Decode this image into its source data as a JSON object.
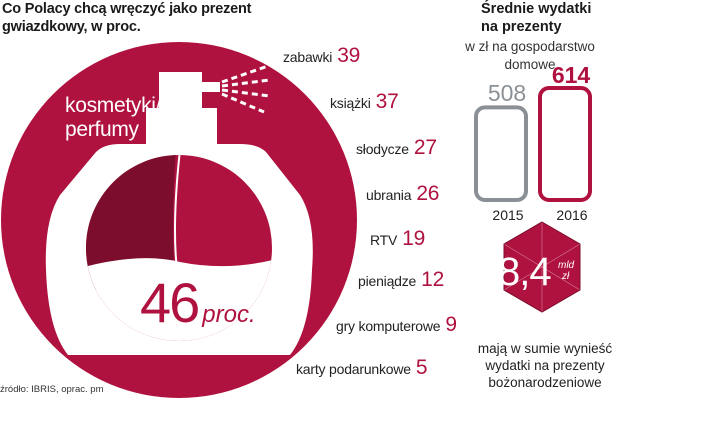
{
  "left_chart": {
    "title": "Co Polacy chcą wręczyć jako prezent gwiazdkowy, w proc.",
    "title_line1": "Co Polacy chcą wręczyć jako prezent",
    "title_line2": "gwiazdkowy, w proc.",
    "main_category": {
      "label_line1": "kosmetyki/",
      "label_line2": "perfumy",
      "value": "46",
      "unit": "proc."
    },
    "source": "źródło: IBRIS, oprac. pm",
    "color_accent": "#b0123f",
    "color_dark": "#7c0d2c"
  },
  "chart_data": [
    {
      "type": "bar",
      "title": "Co Polacy chcą wręczyć jako prezent gwiazdkowy, w proc.",
      "categories": [
        "kosmetyki/perfumy",
        "zabawki",
        "książki",
        "słodycze",
        "ubrania",
        "RTV",
        "pieniądze",
        "gry komputerowe",
        "karty podarunkowe"
      ],
      "values": [
        46,
        39,
        37,
        27,
        26,
        19,
        12,
        9,
        5
      ],
      "items": [
        {
          "label": "zabawki",
          "value": "39"
        },
        {
          "label": "książki",
          "value": "37"
        },
        {
          "label": "słodycze",
          "value": "27"
        },
        {
          "label": "ubrania",
          "value": "26"
        },
        {
          "label": "RTV",
          "value": "19"
        },
        {
          "label": "pieniądze",
          "value": "12"
        },
        {
          "label": "gry komputerowe",
          "value": "9"
        },
        {
          "label": "karty podarunkowe",
          "value": "5"
        }
      ]
    },
    {
      "type": "bar",
      "title": "Średnie wydatki na prezenty",
      "subtitle": "w zł na gospodarstwo domowe",
      "categories": [
        "2015",
        "2016"
      ],
      "values": [
        508,
        614
      ],
      "ylim": [
        0,
        614
      ]
    }
  ],
  "right_chart": {
    "title_line1": "Średnie wydatki",
    "title_line2": "na prezenty",
    "sub_line1": "w zł na gospodarstwo",
    "sub_line2": "domowe",
    "bars": [
      {
        "year": "2015",
        "value": "508",
        "color": "#8a9095"
      },
      {
        "year": "2016",
        "value": "614",
        "color": "#b0123f"
      }
    ],
    "total": {
      "value": "8,4",
      "unit_line1": "mld",
      "unit_line2": "zł"
    },
    "caption_line1": "mają w sumie wynieść",
    "caption_line2": "wydatki na prezenty",
    "caption_line3": "bożonarodzeniowe"
  }
}
